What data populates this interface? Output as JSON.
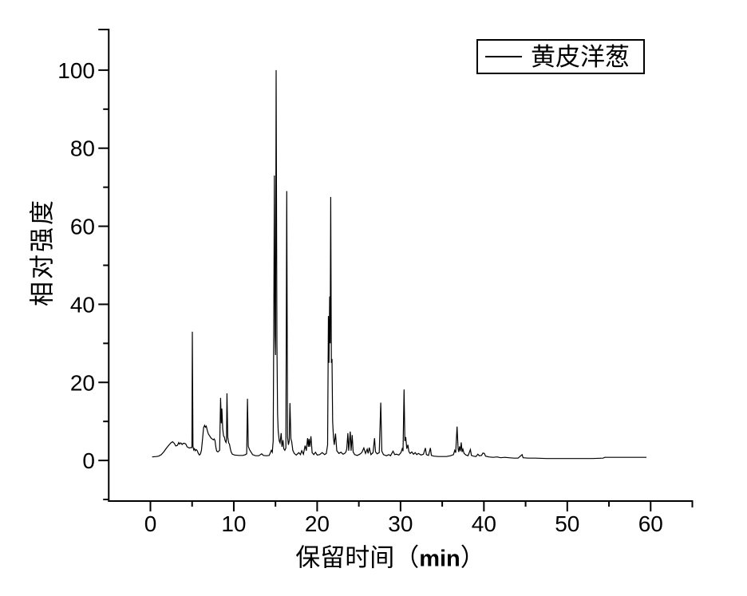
{
  "figure": {
    "legend": {
      "label": "黄皮洋葱"
    },
    "x_axis": {
      "title_prefix": "保留时间（",
      "title_unit": "min",
      "title_suffix": "）"
    },
    "y_axis": {
      "title": "相对强度"
    },
    "colors": {
      "line": "#000000",
      "axis": "#000000",
      "background": "#ffffff"
    }
  },
  "chart_data": {
    "type": "line",
    "title": "",
    "xlabel": "保留时间（min）",
    "ylabel": "相对强度",
    "xlim": [
      -5,
      65
    ],
    "ylim": [
      -10.4,
      110.4
    ],
    "x_major_ticks": [
      0,
      10,
      20,
      30,
      40,
      50,
      60
    ],
    "x_minor_ticks": [
      5,
      15,
      25,
      35,
      45,
      55,
      65
    ],
    "y_major_ticks": [
      0,
      20,
      40,
      60,
      80,
      100
    ],
    "y_minor_ticks": [
      -10,
      10,
      30,
      50,
      70,
      90
    ],
    "y_end_cap": 110.4,
    "grid": false,
    "legend_position": "top-right",
    "series": [
      {
        "name": "黄皮洋葱",
        "color": "#000000",
        "points": [
          [
            0.2,
            0.9
          ],
          [
            0.7,
            1.0
          ],
          [
            1.0,
            1.1
          ],
          [
            1.3,
            1.5
          ],
          [
            1.6,
            2.2
          ],
          [
            1.9,
            3.1
          ],
          [
            2.2,
            3.9
          ],
          [
            2.45,
            4.5
          ],
          [
            2.65,
            4.8
          ],
          [
            2.85,
            4.4
          ],
          [
            3.05,
            3.7
          ],
          [
            3.25,
            3.9
          ],
          [
            3.4,
            4.6
          ],
          [
            3.5,
            4.2
          ],
          [
            3.65,
            4.5
          ],
          [
            3.8,
            4.1
          ],
          [
            3.95,
            4.4
          ],
          [
            4.1,
            4.4
          ],
          [
            4.25,
            4.2
          ],
          [
            4.4,
            3.5
          ],
          [
            4.55,
            3.3
          ],
          [
            4.7,
            3.2
          ],
          [
            4.85,
            3.3
          ],
          [
            4.98,
            3.3
          ],
          [
            5.03,
            33.0
          ],
          [
            5.1,
            3.6
          ],
          [
            5.2,
            2.7
          ],
          [
            5.28,
            3.0
          ],
          [
            5.38,
            2.5
          ],
          [
            5.5,
            2.8
          ],
          [
            5.62,
            2.5
          ],
          [
            5.75,
            1.8
          ],
          [
            5.88,
            1.4
          ],
          [
            6.0,
            1.7
          ],
          [
            6.12,
            2.6
          ],
          [
            6.25,
            5.5
          ],
          [
            6.38,
            8.4
          ],
          [
            6.5,
            9.0
          ],
          [
            6.6,
            8.5
          ],
          [
            6.7,
            8.8
          ],
          [
            6.82,
            7.7
          ],
          [
            6.95,
            6.8
          ],
          [
            7.1,
            6.3
          ],
          [
            7.25,
            5.8
          ],
          [
            7.4,
            5.5
          ],
          [
            7.55,
            5.3
          ],
          [
            7.65,
            5.5
          ],
          [
            7.75,
            5.1
          ],
          [
            7.85,
            3.4
          ],
          [
            7.95,
            2.4
          ],
          [
            8.1,
            2.2
          ],
          [
            8.3,
            2.6
          ],
          [
            8.42,
            16.0
          ],
          [
            8.5,
            9.5
          ],
          [
            8.57,
            13.3
          ],
          [
            8.67,
            8.0
          ],
          [
            8.77,
            6.3
          ],
          [
            8.87,
            6.0
          ],
          [
            8.97,
            5.0
          ],
          [
            9.07,
            4.6
          ],
          [
            9.12,
            5.5
          ],
          [
            9.18,
            17.2
          ],
          [
            9.28,
            6.0
          ],
          [
            9.38,
            4.5
          ],
          [
            9.48,
            4.2
          ],
          [
            9.58,
            3.0
          ],
          [
            9.68,
            2.2
          ],
          [
            9.82,
            1.6
          ],
          [
            10.1,
            1.4
          ],
          [
            10.6,
            1.3
          ],
          [
            11.1,
            1.3
          ],
          [
            11.4,
            1.5
          ],
          [
            11.55,
            1.7
          ],
          [
            11.64,
            15.8
          ],
          [
            11.74,
            3.6
          ],
          [
            11.88,
            2.8
          ],
          [
            12.05,
            2.2
          ],
          [
            12.25,
            1.5
          ],
          [
            12.6,
            1.2
          ],
          [
            13.0,
            1.2
          ],
          [
            13.35,
            1.7
          ],
          [
            13.55,
            1.3
          ],
          [
            13.9,
            1.2
          ],
          [
            14.25,
            1.3
          ],
          [
            14.5,
            2.6
          ],
          [
            14.62,
            2.1
          ],
          [
            14.72,
            5.0
          ],
          [
            14.8,
            37.0
          ],
          [
            14.87,
            73.0
          ],
          [
            14.94,
            32.0
          ],
          [
            15.0,
            27.0
          ],
          [
            15.08,
            100.0
          ],
          [
            15.17,
            30.0
          ],
          [
            15.25,
            12.0
          ],
          [
            15.33,
            7.5
          ],
          [
            15.45,
            5.0
          ],
          [
            15.55,
            4.5
          ],
          [
            15.68,
            7.0
          ],
          [
            15.78,
            3.5
          ],
          [
            15.9,
            5.2
          ],
          [
            16.0,
            3.0
          ],
          [
            16.12,
            2.6
          ],
          [
            16.25,
            3.2
          ],
          [
            16.35,
            69.0
          ],
          [
            16.45,
            6.0
          ],
          [
            16.55,
            4.0
          ],
          [
            16.65,
            5.0
          ],
          [
            16.73,
            14.7
          ],
          [
            16.85,
            5.5
          ],
          [
            16.95,
            4.8
          ],
          [
            17.08,
            2.6
          ],
          [
            17.25,
            1.8
          ],
          [
            17.5,
            1.4
          ],
          [
            17.8,
            2.0
          ],
          [
            18.0,
            1.5
          ],
          [
            18.15,
            2.5
          ],
          [
            18.35,
            1.6
          ],
          [
            18.55,
            3.8
          ],
          [
            18.7,
            2.5
          ],
          [
            18.85,
            5.7
          ],
          [
            18.95,
            3.5
          ],
          [
            19.02,
            5.5
          ],
          [
            19.12,
            3.5
          ],
          [
            19.25,
            6.2
          ],
          [
            19.4,
            2.0
          ],
          [
            19.6,
            1.5
          ],
          [
            19.8,
            2.1
          ],
          [
            20.0,
            1.4
          ],
          [
            20.3,
            1.5
          ],
          [
            20.6,
            2.0
          ],
          [
            20.9,
            1.5
          ],
          [
            21.1,
            1.8
          ],
          [
            21.25,
            4.0
          ],
          [
            21.35,
            37.0
          ],
          [
            21.42,
            25.0
          ],
          [
            21.5,
            42.0
          ],
          [
            21.56,
            30.0
          ],
          [
            21.63,
            67.5
          ],
          [
            21.7,
            25.0
          ],
          [
            21.78,
            26.0
          ],
          [
            21.86,
            10.0
          ],
          [
            21.95,
            6.0
          ],
          [
            22.05,
            4.0
          ],
          [
            22.2,
            6.9
          ],
          [
            22.35,
            2.5
          ],
          [
            22.6,
            1.8
          ],
          [
            22.85,
            2.1
          ],
          [
            23.1,
            1.6
          ],
          [
            23.3,
            1.8
          ],
          [
            23.45,
            2.2
          ],
          [
            23.55,
            3.0
          ],
          [
            23.68,
            7.0
          ],
          [
            23.78,
            2.5
          ],
          [
            23.97,
            7.4
          ],
          [
            24.07,
            2.5
          ],
          [
            24.2,
            6.5
          ],
          [
            24.32,
            2.2
          ],
          [
            24.5,
            1.5
          ],
          [
            24.8,
            1.3
          ],
          [
            25.1,
            1.6
          ],
          [
            25.35,
            2.0
          ],
          [
            25.6,
            3.2
          ],
          [
            25.8,
            1.8
          ],
          [
            26.0,
            2.9
          ],
          [
            26.12,
            1.8
          ],
          [
            26.25,
            3.3
          ],
          [
            26.45,
            1.5
          ],
          [
            26.7,
            2.0
          ],
          [
            26.88,
            5.7
          ],
          [
            27.0,
            2.2
          ],
          [
            27.2,
            1.7
          ],
          [
            27.45,
            2.0
          ],
          [
            27.63,
            14.8
          ],
          [
            27.75,
            2.4
          ],
          [
            27.95,
            1.5
          ],
          [
            28.3,
            1.2
          ],
          [
            28.6,
            1.5
          ],
          [
            28.8,
            1.2
          ],
          [
            29.1,
            2.4
          ],
          [
            29.3,
            1.5
          ],
          [
            29.5,
            1.6
          ],
          [
            29.8,
            1.4
          ],
          [
            30.05,
            2.0
          ],
          [
            30.2,
            3.0
          ],
          [
            30.3,
            2.4
          ],
          [
            30.42,
            18.2
          ],
          [
            30.52,
            5.0
          ],
          [
            30.62,
            6.0
          ],
          [
            30.75,
            3.0
          ],
          [
            30.88,
            4.0
          ],
          [
            31.0,
            2.3
          ],
          [
            31.15,
            1.8
          ],
          [
            31.35,
            2.2
          ],
          [
            31.55,
            1.6
          ],
          [
            31.75,
            2.0
          ],
          [
            31.95,
            1.5
          ],
          [
            32.15,
            1.8
          ],
          [
            32.45,
            1.4
          ],
          [
            32.75,
            1.6
          ],
          [
            32.98,
            3.2
          ],
          [
            33.1,
            1.5
          ],
          [
            33.35,
            1.3
          ],
          [
            33.58,
            3.2
          ],
          [
            33.7,
            1.3
          ],
          [
            34.0,
            1.1
          ],
          [
            34.5,
            1.0
          ],
          [
            35.0,
            1.0
          ],
          [
            35.5,
            1.0
          ],
          [
            36.0,
            1.2
          ],
          [
            36.35,
            1.5
          ],
          [
            36.5,
            2.6
          ],
          [
            36.62,
            2.0
          ],
          [
            36.78,
            8.7
          ],
          [
            36.9,
            3.0
          ],
          [
            36.98,
            2.2
          ],
          [
            37.08,
            3.6
          ],
          [
            37.18,
            2.4
          ],
          [
            37.28,
            4.6
          ],
          [
            37.38,
            2.2
          ],
          [
            37.48,
            2.9
          ],
          [
            37.62,
            1.8
          ],
          [
            37.85,
            1.4
          ],
          [
            38.1,
            1.2
          ],
          [
            38.38,
            2.8
          ],
          [
            38.5,
            1.3
          ],
          [
            38.75,
            1.1
          ],
          [
            39.05,
            1.0
          ],
          [
            39.28,
            1.6
          ],
          [
            39.45,
            1.2
          ],
          [
            39.72,
            1.3
          ],
          [
            39.88,
            1.9
          ],
          [
            40.05,
            1.8
          ],
          [
            40.2,
            1.1
          ],
          [
            40.6,
            0.9
          ],
          [
            41.1,
            0.8
          ],
          [
            41.6,
            0.9
          ],
          [
            42.0,
            0.7
          ],
          [
            42.5,
            0.8
          ],
          [
            43.0,
            0.7
          ],
          [
            43.6,
            0.6
          ],
          [
            44.1,
            0.6
          ],
          [
            44.58,
            1.5
          ],
          [
            44.7,
            0.7
          ],
          [
            45.3,
            0.6
          ],
          [
            46.2,
            0.6
          ],
          [
            47.5,
            0.5
          ],
          [
            49.0,
            0.5
          ],
          [
            51.0,
            0.5
          ],
          [
            53.0,
            0.5
          ],
          [
            54.3,
            0.6
          ],
          [
            54.5,
            0.8
          ],
          [
            56.0,
            0.8
          ],
          [
            57.5,
            0.8
          ],
          [
            59.0,
            0.8
          ],
          [
            59.5,
            0.8
          ]
        ]
      }
    ]
  }
}
